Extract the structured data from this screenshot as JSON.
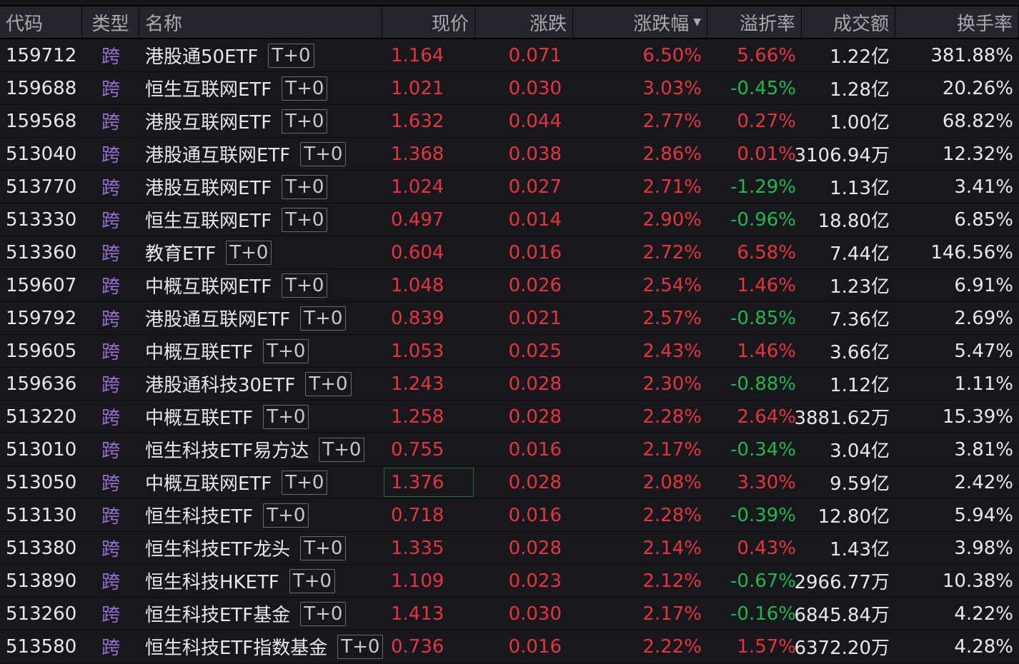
{
  "headers": {
    "code": "代码",
    "type": "类型",
    "name": "名称",
    "price": "现价",
    "change": "涨跌",
    "pct": "涨跌幅",
    "premium": "溢折率",
    "amount": "成交额",
    "turnover": "换手率"
  },
  "sort_icon": "triangle-down-icon",
  "selected_row": 13,
  "colors": {
    "up": "#e8343c",
    "down": "#1fb84a",
    "type": "#9b6fd0"
  },
  "rows": [
    {
      "code": "159712",
      "type": "跨",
      "name": "港股通50ETF",
      "tag": "T+0",
      "price": "1.164",
      "change": "0.071",
      "pct": "6.50%",
      "premium": "5.66%",
      "amount": "1.22亿",
      "turnover": "381.88%"
    },
    {
      "code": "159688",
      "type": "跨",
      "name": "恒生互联网ETF",
      "tag": "T+0",
      "price": "1.021",
      "change": "0.030",
      "pct": "3.03%",
      "premium": "-0.45%",
      "amount": "1.28亿",
      "turnover": "20.26%"
    },
    {
      "code": "159568",
      "type": "跨",
      "name": "港股互联网ETF",
      "tag": "T+0",
      "price": "1.632",
      "change": "0.044",
      "pct": "2.77%",
      "premium": "0.27%",
      "amount": "1.00亿",
      "turnover": "68.82%"
    },
    {
      "code": "513040",
      "type": "跨",
      "name": "港股通互联网ETF",
      "tag": "T+0",
      "price": "1.368",
      "change": "0.038",
      "pct": "2.86%",
      "premium": "0.01%",
      "amount": "3106.94万",
      "turnover": "12.32%"
    },
    {
      "code": "513770",
      "type": "跨",
      "name": "港股互联网ETF",
      "tag": "T+0",
      "price": "1.024",
      "change": "0.027",
      "pct": "2.71%",
      "premium": "-1.29%",
      "amount": "1.13亿",
      "turnover": "3.41%"
    },
    {
      "code": "513330",
      "type": "跨",
      "name": "恒生互联网ETF",
      "tag": "T+0",
      "price": "0.497",
      "change": "0.014",
      "pct": "2.90%",
      "premium": "-0.96%",
      "amount": "18.80亿",
      "turnover": "6.85%"
    },
    {
      "code": "513360",
      "type": "跨",
      "name": "教育ETF",
      "tag": "T+0",
      "price": "0.604",
      "change": "0.016",
      "pct": "2.72%",
      "premium": "6.58%",
      "amount": "7.44亿",
      "turnover": "146.56%"
    },
    {
      "code": "159607",
      "type": "跨",
      "name": "中概互联网ETF",
      "tag": "T+0",
      "price": "1.048",
      "change": "0.026",
      "pct": "2.54%",
      "premium": "1.46%",
      "amount": "1.23亿",
      "turnover": "6.91%"
    },
    {
      "code": "159792",
      "type": "跨",
      "name": "港股通互联网ETF",
      "tag": "T+0",
      "price": "0.839",
      "change": "0.021",
      "pct": "2.57%",
      "premium": "-0.85%",
      "amount": "7.36亿",
      "turnover": "2.69%"
    },
    {
      "code": "159605",
      "type": "跨",
      "name": "中概互联ETF",
      "tag": "T+0",
      "price": "1.053",
      "change": "0.025",
      "pct": "2.43%",
      "premium": "1.46%",
      "amount": "3.66亿",
      "turnover": "5.47%"
    },
    {
      "code": "159636",
      "type": "跨",
      "name": "港股通科技30ETF",
      "tag": "T+0",
      "price": "1.243",
      "change": "0.028",
      "pct": "2.30%",
      "premium": "-0.88%",
      "amount": "1.12亿",
      "turnover": "1.11%"
    },
    {
      "code": "513220",
      "type": "跨",
      "name": "中概互联ETF",
      "tag": "T+0",
      "price": "1.258",
      "change": "0.028",
      "pct": "2.28%",
      "premium": "2.64%",
      "amount": "3881.62万",
      "turnover": "15.39%"
    },
    {
      "code": "513010",
      "type": "跨",
      "name": "恒生科技ETF易方达",
      "tag": "T+0",
      "price": "0.755",
      "change": "0.016",
      "pct": "2.17%",
      "premium": "-0.34%",
      "amount": "3.04亿",
      "turnover": "3.81%"
    },
    {
      "code": "513050",
      "type": "跨",
      "name": "中概互联网ETF",
      "tag": "T+0",
      "price": "1.376",
      "change": "0.028",
      "pct": "2.08%",
      "premium": "3.30%",
      "amount": "9.59亿",
      "turnover": "2.42%"
    },
    {
      "code": "513130",
      "type": "跨",
      "name": "恒生科技ETF",
      "tag": "T+0",
      "price": "0.718",
      "change": "0.016",
      "pct": "2.28%",
      "premium": "-0.39%",
      "amount": "12.80亿",
      "turnover": "5.94%"
    },
    {
      "code": "513380",
      "type": "跨",
      "name": "恒生科技ETF龙头",
      "tag": "T+0",
      "price": "1.335",
      "change": "0.028",
      "pct": "2.14%",
      "premium": "0.43%",
      "amount": "1.43亿",
      "turnover": "3.98%"
    },
    {
      "code": "513890",
      "type": "跨",
      "name": "恒生科技HKETF",
      "tag": "T+0",
      "price": "1.109",
      "change": "0.023",
      "pct": "2.12%",
      "premium": "-0.67%",
      "amount": "2966.77万",
      "turnover": "10.38%"
    },
    {
      "code": "513260",
      "type": "跨",
      "name": "恒生科技ETF基金",
      "tag": "T+0",
      "price": "1.413",
      "change": "0.030",
      "pct": "2.17%",
      "premium": "-0.16%",
      "amount": "6845.84万",
      "turnover": "4.22%"
    },
    {
      "code": "513580",
      "type": "跨",
      "name": "恒生科技ETF指数基金",
      "tag": "T+0",
      "price": "0.736",
      "change": "0.016",
      "pct": "2.22%",
      "premium": "1.57%",
      "amount": "6372.20万",
      "turnover": "4.28%"
    }
  ]
}
